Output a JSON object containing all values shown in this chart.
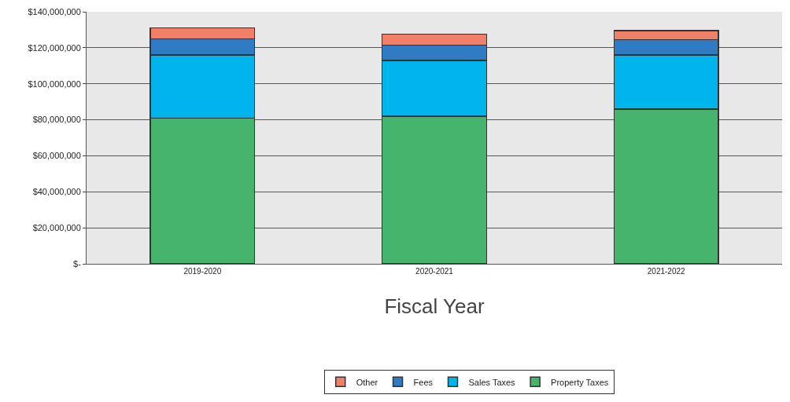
{
  "chart_data": {
    "type": "bar",
    "stacked": true,
    "xlabel": "Fiscal Year",
    "categories": [
      "2019-2020",
      "2020-2021",
      "2021-2022"
    ],
    "series": [
      {
        "name": "Property Taxes",
        "color": "#45b46c",
        "values": [
          81000000,
          82000000,
          86000000
        ]
      },
      {
        "name": "Sales Taxes",
        "color": "#00b4ec",
        "values": [
          35000000,
          31000000,
          30000000
        ]
      },
      {
        "name": "Fees",
        "color": "#2f7bc4",
        "values": [
          9000000,
          8500000,
          8500000
        ]
      },
      {
        "name": "Other",
        "color": "#f0806a",
        "values": [
          6000000,
          6000000,
          5000000
        ]
      }
    ],
    "ylim": [
      0,
      140000000
    ],
    "yticks": [
      {
        "value": 0,
        "label": "$-"
      },
      {
        "value": 20000000,
        "label": "$20,000,000"
      },
      {
        "value": 40000000,
        "label": "$40,000,000"
      },
      {
        "value": 60000000,
        "label": "$60,000,000"
      },
      {
        "value": 80000000,
        "label": "$80,000,000"
      },
      {
        "value": 100000000,
        "label": "$100,000,000"
      },
      {
        "value": 120000000,
        "label": "$120,000,000"
      },
      {
        "value": 140000000,
        "label": "$140,000,000"
      }
    ],
    "grid": "y",
    "legend": "bottom"
  }
}
